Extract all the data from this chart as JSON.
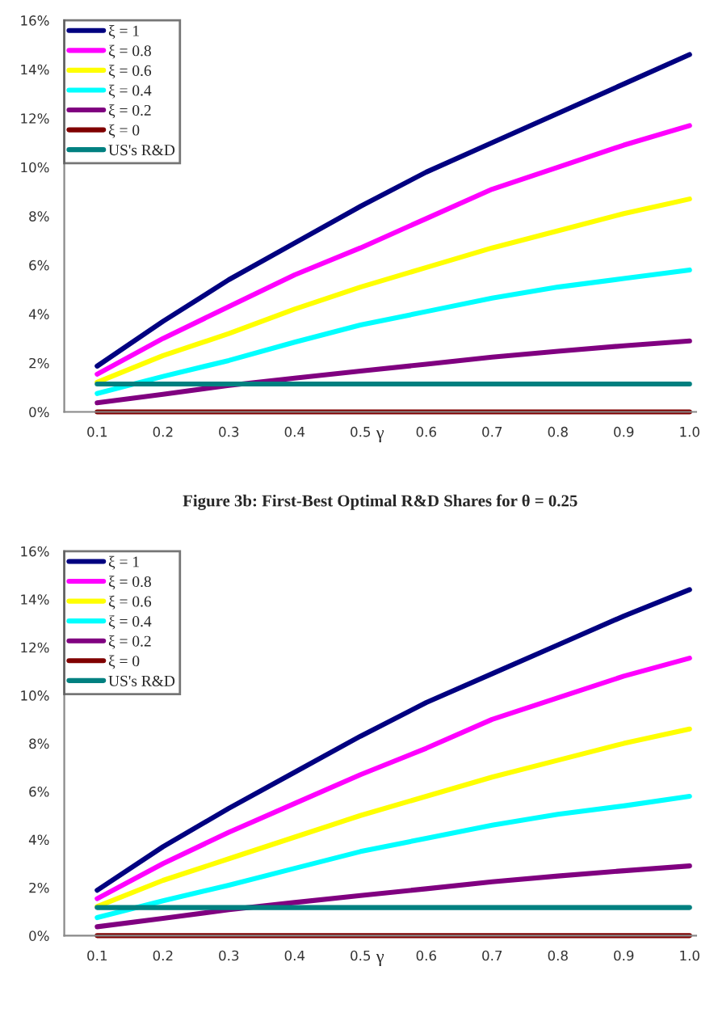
{
  "chart_data": [
    {
      "type": "line",
      "xlabel": "γ",
      "x": [
        0.1,
        0.2,
        0.3,
        0.4,
        0.5,
        0.6,
        0.7,
        0.8,
        0.9,
        1.0
      ],
      "xlim": [
        0.05,
        1.01
      ],
      "xticks": [
        {
          "value": 0.1,
          "label": "0.1"
        },
        {
          "value": 0.2,
          "label": "0.2"
        },
        {
          "value": 0.3,
          "label": "0.3"
        },
        {
          "value": 0.4,
          "label": "0.4"
        },
        {
          "value": 0.5,
          "label": "0.5"
        },
        {
          "value": 0.6,
          "label": "0.6"
        },
        {
          "value": 0.7,
          "label": "0.7"
        },
        {
          "value": 0.8,
          "label": "0.8"
        },
        {
          "value": 0.9,
          "label": "0.9"
        },
        {
          "value": 1.0,
          "label": "1.0"
        }
      ],
      "ylim": [
        0,
        16
      ],
      "yticks": [
        {
          "value": 0,
          "label": "0%"
        },
        {
          "value": 2,
          "label": "2%"
        },
        {
          "value": 4,
          "label": "4%"
        },
        {
          "value": 6,
          "label": "6%"
        },
        {
          "value": 8,
          "label": "8%"
        },
        {
          "value": 10,
          "label": "10%"
        },
        {
          "value": 12,
          "label": "12%"
        },
        {
          "value": 14,
          "label": "14%"
        },
        {
          "value": 16,
          "label": "16%"
        }
      ],
      "legend": "top left",
      "grid": false,
      "marker": "none",
      "line_style": "solid",
      "series": [
        {
          "name": "ξ = 1",
          "color": "#000080",
          "values": [
            1.87,
            3.7,
            5.4,
            6.9,
            8.4,
            9.8,
            11.0,
            12.2,
            13.4,
            14.6
          ]
        },
        {
          "name": "ξ = 0.8",
          "color": "#ff00ff",
          "values": [
            1.54,
            3.0,
            4.3,
            5.6,
            6.7,
            7.9,
            9.1,
            10.0,
            10.9,
            11.7
          ]
        },
        {
          "name": "ξ = 0.6",
          "color": "#ffff00",
          "values": [
            1.21,
            2.3,
            3.2,
            4.2,
            5.1,
            5.9,
            6.7,
            7.4,
            8.1,
            8.7
          ]
        },
        {
          "name": "ξ = 0.4",
          "color": "#00ffff",
          "values": [
            0.75,
            1.45,
            2.1,
            2.85,
            3.55,
            4.1,
            4.65,
            5.1,
            5.45,
            5.8
          ]
        },
        {
          "name": "ξ = 0.2",
          "color": "#800080",
          "values": [
            0.37,
            0.72,
            1.08,
            1.38,
            1.67,
            1.95,
            2.24,
            2.48,
            2.7,
            2.9
          ]
        },
        {
          "name": "ξ = 0",
          "color": "#800000",
          "values": [
            0,
            0,
            0,
            0,
            0,
            0,
            0,
            0,
            0,
            0
          ]
        },
        {
          "name": "US's R&D",
          "color": "#008080",
          "values": [
            1.14,
            1.14,
            1.14,
            1.14,
            1.14,
            1.14,
            1.14,
            1.14,
            1.14,
            1.14
          ]
        }
      ]
    },
    {
      "type": "line",
      "title": "Figure 3b: First-Best Optimal R&D Shares for θ = 0.25",
      "xlabel": "γ",
      "x": [
        0.1,
        0.2,
        0.3,
        0.4,
        0.5,
        0.6,
        0.7,
        0.8,
        0.9,
        1.0
      ],
      "xlim": [
        0.05,
        1.01
      ],
      "xticks": [
        {
          "value": 0.1,
          "label": "0.1"
        },
        {
          "value": 0.2,
          "label": "0.2"
        },
        {
          "value": 0.3,
          "label": "0.3"
        },
        {
          "value": 0.4,
          "label": "0.4"
        },
        {
          "value": 0.5,
          "label": "0.5"
        },
        {
          "value": 0.6,
          "label": "0.6"
        },
        {
          "value": 0.7,
          "label": "0.7"
        },
        {
          "value": 0.8,
          "label": "0.8"
        },
        {
          "value": 0.9,
          "label": "0.9"
        },
        {
          "value": 1.0,
          "label": "1.0"
        }
      ],
      "ylim": [
        0,
        16
      ],
      "yticks": [
        {
          "value": 0,
          "label": "0%"
        },
        {
          "value": 2,
          "label": "2%"
        },
        {
          "value": 4,
          "label": "4%"
        },
        {
          "value": 6,
          "label": "6%"
        },
        {
          "value": 8,
          "label": "8%"
        },
        {
          "value": 10,
          "label": "10%"
        },
        {
          "value": 12,
          "label": "12%"
        },
        {
          "value": 14,
          "label": "14%"
        },
        {
          "value": 16,
          "label": "16%"
        }
      ],
      "legend": "top left",
      "grid": false,
      "marker": "none",
      "line_style": "solid",
      "series": [
        {
          "name": "ξ = 1",
          "color": "#000080",
          "values": [
            1.89,
            3.7,
            5.3,
            6.8,
            8.3,
            9.7,
            10.9,
            12.1,
            13.3,
            14.4
          ]
        },
        {
          "name": "ξ = 0.8",
          "color": "#ff00ff",
          "values": [
            1.54,
            3.0,
            4.3,
            5.5,
            6.7,
            7.8,
            9.0,
            9.9,
            10.8,
            11.55
          ]
        },
        {
          "name": "ξ = 0.6",
          "color": "#ffff00",
          "values": [
            1.21,
            2.3,
            3.2,
            4.1,
            5.0,
            5.8,
            6.6,
            7.3,
            8.0,
            8.6
          ]
        },
        {
          "name": "ξ = 0.4",
          "color": "#00ffff",
          "values": [
            0.75,
            1.45,
            2.1,
            2.8,
            3.5,
            4.05,
            4.6,
            5.05,
            5.4,
            5.8
          ]
        },
        {
          "name": "ξ = 0.2",
          "color": "#800080",
          "values": [
            0.37,
            0.72,
            1.08,
            1.38,
            1.67,
            1.95,
            2.24,
            2.48,
            2.7,
            2.9
          ]
        },
        {
          "name": "ξ = 0",
          "color": "#800000",
          "values": [
            0,
            0,
            0,
            0,
            0,
            0,
            0,
            0,
            0,
            0
          ]
        },
        {
          "name": "US's R&D",
          "color": "#008080",
          "values": [
            1.17,
            1.17,
            1.17,
            1.17,
            1.17,
            1.17,
            1.17,
            1.17,
            1.17,
            1.17
          ]
        }
      ]
    }
  ]
}
